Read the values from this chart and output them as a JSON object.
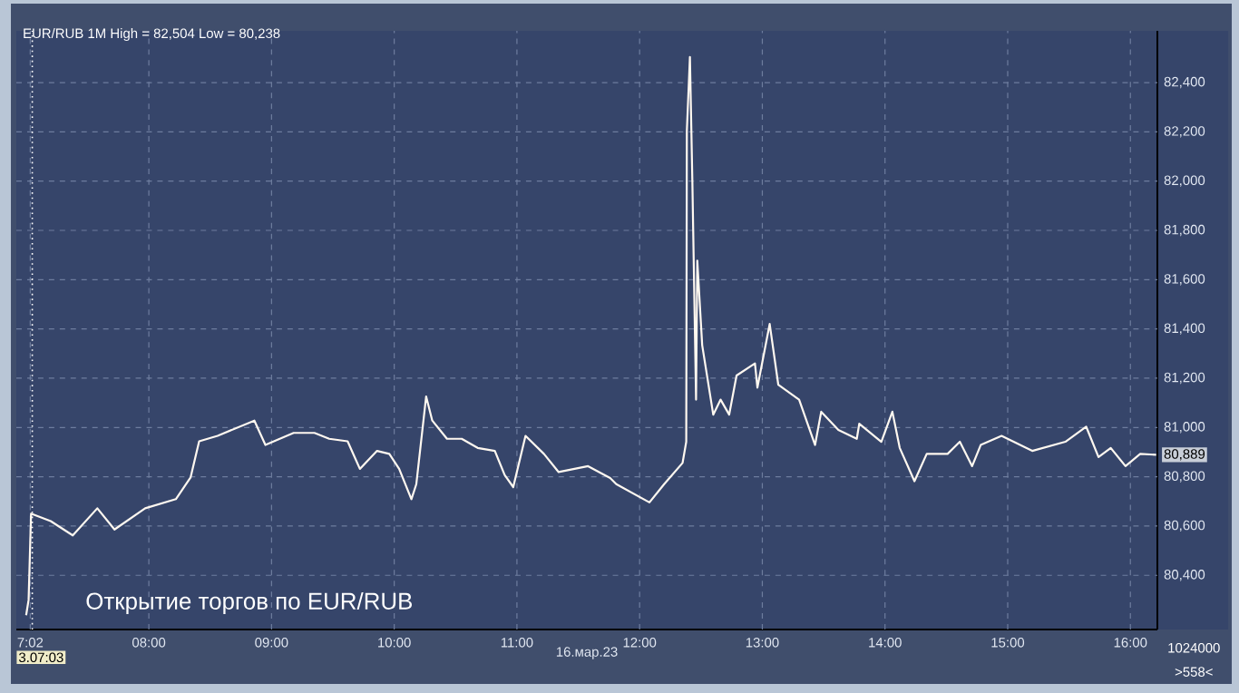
{
  "chart_data": {
    "type": "line",
    "title": "EUR/RUB 1M High = 82,504 Low = 80,238",
    "xlabel": "16.мар.23",
    "x": [
      7.0,
      7.02,
      7.04,
      7.2,
      7.38,
      7.58,
      7.72,
      7.97,
      8.22,
      8.34,
      8.41,
      8.56,
      8.86,
      8.95,
      9.18,
      9.35,
      9.47,
      9.62,
      9.72,
      9.86,
      9.96,
      10.04,
      10.14,
      10.18,
      10.26,
      10.31,
      10.43,
      10.55,
      10.68,
      10.82,
      10.9,
      10.97,
      11.07,
      11.22,
      11.34,
      11.58,
      11.76,
      11.81,
      12.08,
      12.2,
      12.35,
      12.38,
      12.385,
      12.41,
      12.43,
      12.46,
      12.47,
      12.51,
      12.6,
      12.66,
      12.73,
      12.79,
      12.94,
      12.96,
      13.06,
      13.13,
      13.3,
      13.43,
      13.48,
      13.62,
      13.77,
      13.79,
      13.97,
      14.06,
      14.12,
      14.24,
      14.34,
      14.51,
      14.61,
      14.71,
      14.78,
      14.95,
      15.2,
      15.47,
      15.64,
      15.74,
      15.84,
      15.96,
      16.08,
      16.21
    ],
    "series": [
      {
        "color": "#fff8f0",
        "values": [
          80238,
          80300,
          80650,
          80620,
          80562,
          80672,
          80586,
          80672,
          80709,
          80797,
          80944,
          80966,
          81028,
          80929,
          80978,
          80978,
          80954,
          80944,
          80832,
          80905,
          80893,
          80832,
          80709,
          80770,
          81126,
          81028,
          80954,
          80954,
          80917,
          80905,
          80807,
          80758,
          80966,
          80893,
          80819,
          80843,
          80795,
          80770,
          80696,
          80770,
          80856,
          80942,
          82204,
          82504,
          81996,
          81113,
          81677,
          81334,
          81052,
          81113,
          81052,
          81211,
          81260,
          81162,
          81420,
          81174,
          81113,
          80929,
          81064,
          80990,
          80954,
          81015,
          80942,
          81064,
          80917,
          80782,
          80893,
          80893,
          80942,
          80843,
          80929,
          80966,
          80905,
          80942,
          81003,
          80880,
          80917,
          80843,
          80893,
          80889
        ]
      }
    ],
    "xlim": [
      6.92,
      16.22
    ],
    "ylim": [
      80180,
      82610
    ],
    "xticks": [
      {
        "value": 7.0333,
        "label": "7:02"
      },
      {
        "value": 8,
        "label": "08:00"
      },
      {
        "value": 9,
        "label": "09:00"
      },
      {
        "value": 10,
        "label": "10:00"
      },
      {
        "value": 11,
        "label": "11:00"
      },
      {
        "value": 12,
        "label": "12:00"
      },
      {
        "value": 13,
        "label": "13:00"
      },
      {
        "value": 14,
        "label": "14:00"
      },
      {
        "value": 15,
        "label": "15:00"
      },
      {
        "value": 16,
        "label": "16:00"
      }
    ],
    "yticks": [
      {
        "value": 80400,
        "label": "80,400"
      },
      {
        "value": 80600,
        "label": "80,600"
      },
      {
        "value": 80800,
        "label": "80,800"
      },
      {
        "value": 81000,
        "label": "81,000"
      },
      {
        "value": 81200,
        "label": "81,200"
      },
      {
        "value": 81400,
        "label": "81,400"
      },
      {
        "value": 81600,
        "label": "81,600"
      },
      {
        "value": 81800,
        "label": "81,800"
      },
      {
        "value": 82000,
        "label": "82,000"
      },
      {
        "value": 82200,
        "label": "82,200"
      },
      {
        "value": 82400,
        "label": "82,400"
      }
    ],
    "ref_lines": [
      {
        "axis": "x",
        "value": 7.05,
        "color": "#ffffff",
        "line_style": "dotted"
      }
    ],
    "annotations": [
      "Открытие торгов по EUR/RUB",
      {
        "text": "80,889",
        "x": 16.21,
        "y": 80889
      },
      "1024000",
      ">558<",
      "3.07:03"
    ],
    "grid": true,
    "marker": "none",
    "line_style": "solid"
  }
}
